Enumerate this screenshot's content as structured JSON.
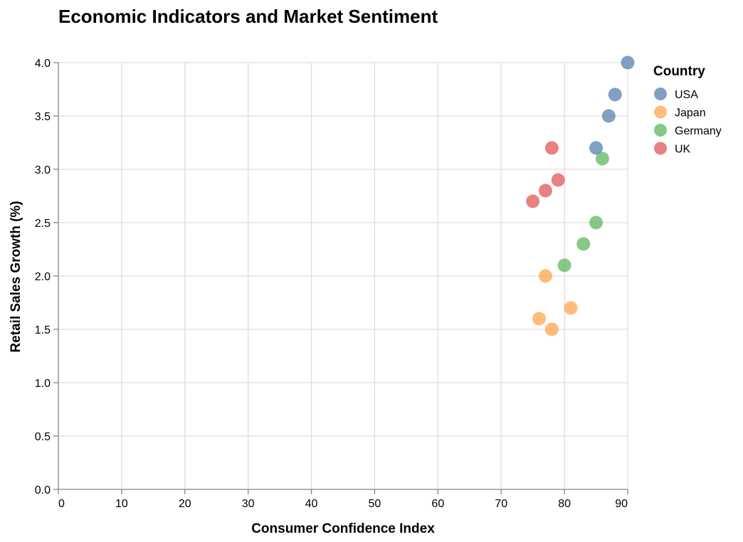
{
  "chart_data": {
    "type": "scatter",
    "title": "Economic Indicators and Market Sentiment",
    "xlabel": "Consumer Confidence Index",
    "ylabel": "Retail Sales Growth (%)",
    "xlim": [
      0,
      90
    ],
    "ylim": [
      0,
      4.0
    ],
    "x_ticks": [
      "0",
      "10",
      "20",
      "30",
      "40",
      "50",
      "60",
      "70",
      "80",
      "90"
    ],
    "y_ticks": [
      "0.0",
      "0.5",
      "1.0",
      "1.5",
      "2.0",
      "2.5",
      "3.0",
      "3.5",
      "4.0"
    ],
    "grid": true,
    "legend": {
      "title": "Country",
      "placement": "right"
    },
    "series": [
      {
        "name": "USA",
        "color": "#4c78a8",
        "points": [
          {
            "x": 90,
            "y": 4.0
          },
          {
            "x": 88,
            "y": 3.7
          },
          {
            "x": 87,
            "y": 3.5
          },
          {
            "x": 85,
            "y": 3.2
          }
        ]
      },
      {
        "name": "Japan",
        "color": "#ff9f3f",
        "points": [
          {
            "x": 77,
            "y": 2.0
          },
          {
            "x": 81,
            "y": 1.7
          },
          {
            "x": 76,
            "y": 1.6
          },
          {
            "x": 78,
            "y": 1.5
          }
        ]
      },
      {
        "name": "Germany",
        "color": "#54b054",
        "points": [
          {
            "x": 86,
            "y": 3.1
          },
          {
            "x": 85,
            "y": 2.5
          },
          {
            "x": 83,
            "y": 2.3
          },
          {
            "x": 80,
            "y": 2.1
          }
        ]
      },
      {
        "name": "UK",
        "color": "#e04b4f",
        "points": [
          {
            "x": 78,
            "y": 3.2
          },
          {
            "x": 79,
            "y": 2.9
          },
          {
            "x": 77,
            "y": 2.8
          },
          {
            "x": 75,
            "y": 2.7
          }
        ]
      }
    ]
  }
}
